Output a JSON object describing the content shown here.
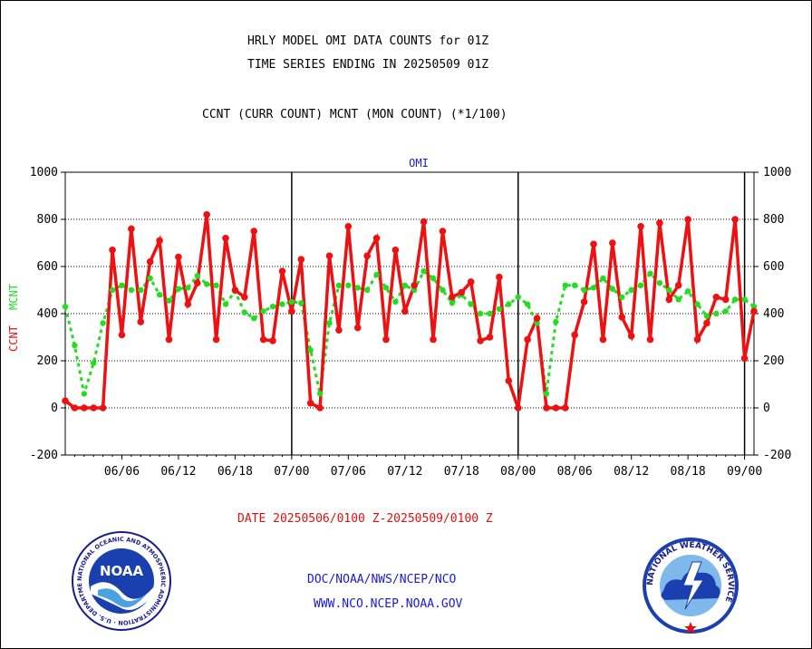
{
  "header": {
    "title_line1": "HRLY MODEL OMI DATA COUNTS for 01Z",
    "title_line2": "TIME SERIES ENDING IN 20250509 01Z",
    "subtitle": "CCNT (CURR COUNT) MCNT (MON COUNT) (*1/100)"
  },
  "footer": {
    "date_range": "DATE 20250506/0100 Z-20250509/0100 Z",
    "agency": "DOC/NOAA/NWS/NCEP/NCO",
    "website": "WWW.NCO.NCEP.NOAA.GOV"
  },
  "logos": {
    "noaa_text": "NOAA",
    "noaa_ring_text": "NATIONAL OCEANIC AND ATMOSPHERIC ADMINISTRATION · U.S. DEPARTMENT OF COMMERCE",
    "nws_ring_text": "NATIONAL WEATHER SERVICE"
  },
  "colors": {
    "ccnt": "#ee1111",
    "mcnt": "#22dd22",
    "label": "#1a1ad6",
    "grid": "#000000"
  },
  "chart_data": {
    "type": "line",
    "title": "OMI",
    "ylabel_left": [
      "CCNT",
      "MCNT"
    ],
    "ylim": [
      -200,
      1000
    ],
    "yticks": [
      -200,
      0,
      200,
      400,
      600,
      800,
      1000
    ],
    "grid": true,
    "day_boundaries": [
      "07/00",
      "08/00",
      "09/00"
    ],
    "x_tick_labels": [
      "06/06",
      "06/12",
      "06/18",
      "07/00",
      "07/06",
      "07/12",
      "07/18",
      "08/00",
      "08/06",
      "08/12",
      "08/18",
      "09/00"
    ],
    "x_start": "06/00",
    "x_end": "09/00",
    "x_step_hours": 1,
    "series": [
      {
        "name": "CCNT",
        "values": [
          30,
          0,
          0,
          0,
          0,
          670,
          310,
          760,
          365,
          620,
          710,
          290,
          640,
          440,
          530,
          820,
          290,
          720,
          500,
          470,
          750,
          290,
          285,
          580,
          410,
          630,
          20,
          0,
          645,
          330,
          770,
          340,
          645,
          720,
          290,
          670,
          410,
          520,
          790,
          290,
          750,
          470,
          490,
          535,
          285,
          300,
          555,
          115,
          0,
          290,
          380,
          0,
          0,
          0,
          310,
          450,
          695,
          290,
          700,
          385,
          305,
          770,
          290,
          785,
          460,
          520,
          800,
          290,
          360,
          470,
          460,
          800,
          210,
          410
        ]
      },
      {
        "name": "MCNT",
        "values": [
          430,
          265,
          60,
          190,
          360,
          500,
          520,
          500,
          500,
          550,
          480,
          455,
          505,
          510,
          560,
          525,
          520,
          440,
          495,
          405,
          380,
          410,
          430,
          440,
          450,
          445,
          245,
          60,
          360,
          520,
          520,
          510,
          500,
          565,
          510,
          450,
          520,
          500,
          580,
          550,
          500,
          445,
          480,
          440,
          400,
          400,
          420,
          440,
          470,
          440,
          360,
          60,
          365,
          520,
          520,
          500,
          510,
          550,
          505,
          470,
          500,
          520,
          570,
          530,
          500,
          460,
          495,
          440,
          390,
          400,
          410,
          460,
          460,
          430
        ]
      }
    ]
  }
}
